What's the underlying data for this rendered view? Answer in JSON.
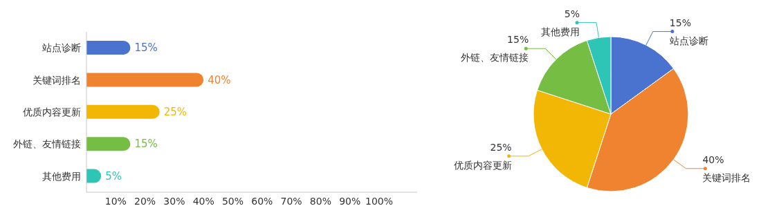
{
  "chart_data": [
    {
      "type": "bar",
      "orientation": "horizontal",
      "categories": [
        "站点诊断",
        "关键词排名",
        "优质内容更新",
        "外链、友情链接",
        "其他费用"
      ],
      "values": [
        15,
        40,
        25,
        15,
        5
      ],
      "colors": [
        "#4a73d0",
        "#f0832f",
        "#f2b705",
        "#76bd43",
        "#2ec4b6"
      ],
      "value_labels": [
        "15%",
        "40%",
        "25%",
        "15%",
        "5%"
      ],
      "xlim": [
        0,
        113
      ],
      "xticks": [
        {
          "value": 10,
          "label": "10%"
        },
        {
          "value": 20,
          "label": "20%"
        },
        {
          "value": 30,
          "label": "30%"
        },
        {
          "value": 40,
          "label": "40%"
        },
        {
          "value": 50,
          "label": "50%"
        },
        {
          "value": 60,
          "label": "60%"
        },
        {
          "value": 70,
          "label": "70%"
        },
        {
          "value": 80,
          "label": "80%"
        },
        {
          "value": 90,
          "label": "90%"
        },
        {
          "value": 100,
          "label": "100%"
        }
      ],
      "grid": false,
      "legend": false
    },
    {
      "type": "pie",
      "categories": [
        "站点诊断",
        "关键词排名",
        "优质内容更新",
        "外链、友情链接",
        "其他费用"
      ],
      "values": [
        15,
        40,
        25,
        15,
        5
      ],
      "colors": [
        "#4a73d0",
        "#f0832f",
        "#f2b705",
        "#76bd43",
        "#2ec4b6"
      ],
      "value_labels": [
        "15%",
        "40%",
        "25%",
        "15%",
        "5%"
      ],
      "legend": false
    }
  ]
}
